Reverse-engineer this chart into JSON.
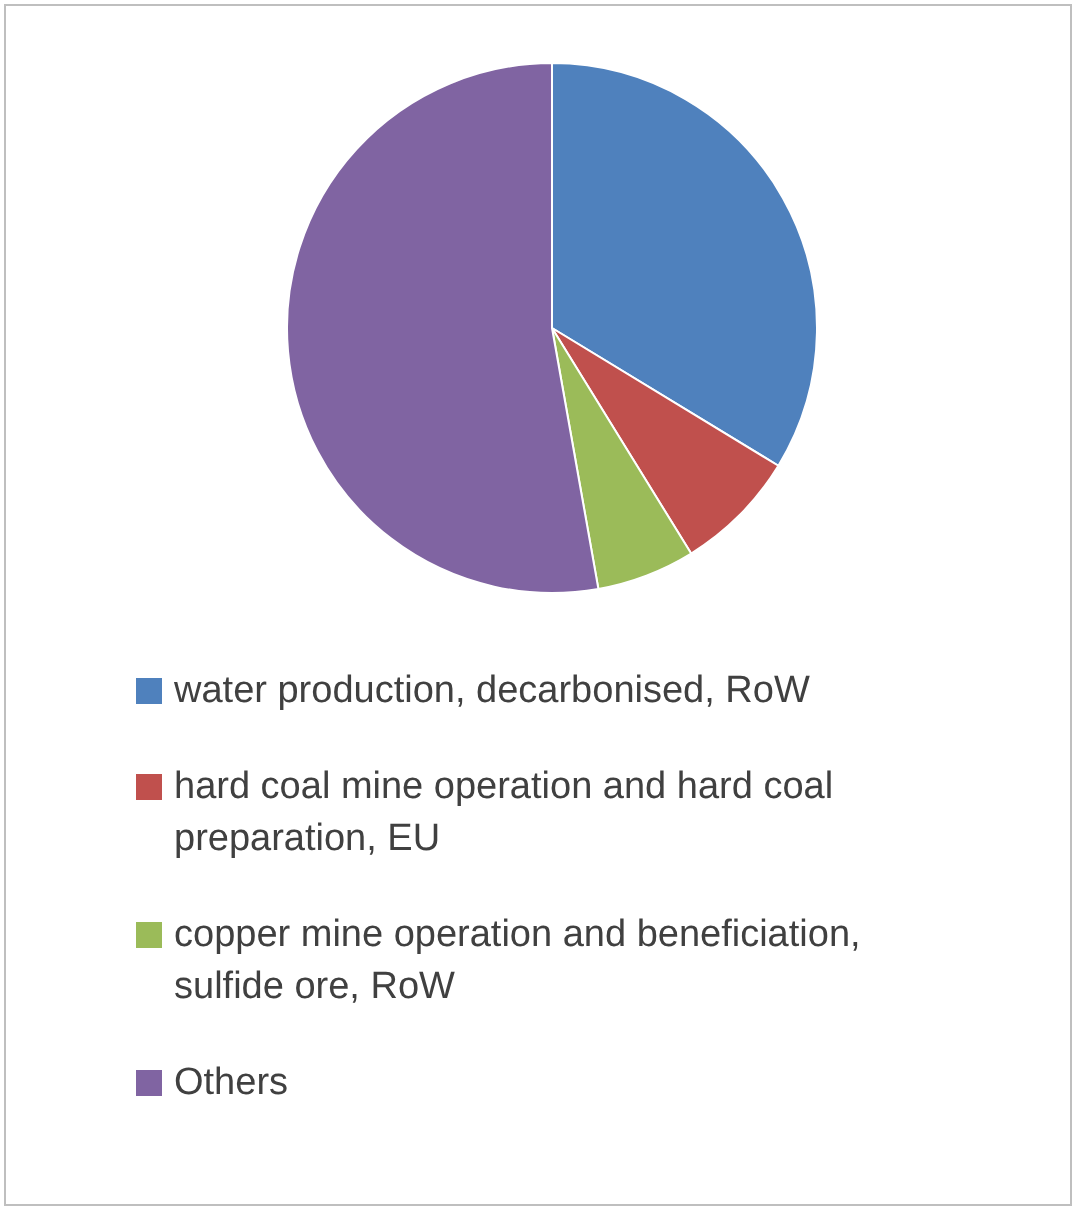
{
  "chart_data": {
    "type": "pie",
    "categories": [
      "water production, decarbonised, RoW",
      "hard coal mine operation and hard coal preparation, EU",
      "copper mine operation and beneficiation, sulfide ore, RoW",
      "Others"
    ],
    "values": [
      33.7,
      7.5,
      6,
      52.8
    ],
    "colors": [
      "#4f81bd",
      "#c0504d",
      "#9bbb59",
      "#8064a2"
    ],
    "legend": "bottom"
  }
}
